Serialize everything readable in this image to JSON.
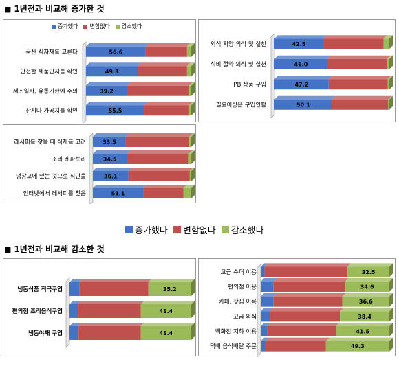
{
  "sections": {
    "increase_title": "1년전과 비교해 증가한 것",
    "decrease_title": "1년전과 비교해 감소한 것",
    "bullet": "■"
  },
  "legend": {
    "items": [
      {
        "label": "증가했다",
        "color": "#4472c4"
      },
      {
        "label": "변함없다",
        "color": "#c0504d"
      },
      {
        "label": "감소했다",
        "color": "#9bbb59"
      }
    ]
  },
  "chart_data": [
    {
      "type": "bar",
      "orientation": "horizontal",
      "stacked": true,
      "categories": [
        "국산 식자재를 고른다",
        "안전한 제품인지를 확인",
        "제조일자, 유통기한에 주의",
        "산지나 가공지를 확인"
      ],
      "series": [
        {
          "name": "증가했다",
          "values": [
            56.6,
            49.3,
            39.2,
            55.5
          ]
        },
        {
          "name": "변함없다",
          "values": [
            39.4,
            46.7,
            58.8,
            42.5
          ]
        },
        {
          "name": "감소했다",
          "values": [
            4.0,
            4.0,
            2.0,
            2.0
          ]
        }
      ],
      "labeled_series": "증가했다",
      "xlim": [
        0,
        100
      ],
      "legend": "top"
    },
    {
      "type": "bar",
      "orientation": "horizontal",
      "stacked": true,
      "categories": [
        "외식 지양 의식 및 실천",
        "식비 절약 의식 및 실천",
        "PB 상품 구입",
        "필요이상은 구입안함"
      ],
      "series": [
        {
          "name": "증가했다",
          "values": [
            42.5,
            46.0,
            47.2,
            50.1
          ]
        },
        {
          "name": "변함없다",
          "values": [
            52.5,
            52.0,
            51.3,
            48.9
          ]
        },
        {
          "name": "감소했다",
          "values": [
            5.0,
            2.0,
            1.5,
            1.0
          ]
        }
      ],
      "labeled_series": "증가했다",
      "xlim": [
        0,
        100
      ]
    },
    {
      "type": "bar",
      "orientation": "horizontal",
      "stacked": true,
      "categories": [
        "레시피를 찾을 때 식재를 고려",
        "조리 레파토리",
        "냉장고에 있는 것으로 식단을",
        "인터넷에서 레서피를 찾음"
      ],
      "series": [
        {
          "name": "증가했다",
          "values": [
            33.5,
            34.5,
            36.1,
            51.1
          ]
        },
        {
          "name": "변함없다",
          "values": [
            64.5,
            63.0,
            62.4,
            40.9
          ]
        },
        {
          "name": "감소했다",
          "values": [
            2.0,
            2.5,
            1.5,
            8.0
          ]
        }
      ],
      "labeled_series": "증가했다",
      "xlim": [
        0,
        100
      ],
      "legend": "bottom"
    },
    {
      "type": "bar",
      "orientation": "horizontal",
      "stacked": true,
      "categories": [
        "냉동식품 적극구입",
        "편의점 조리음식구입",
        "냉동야채 구입"
      ],
      "series": [
        {
          "name": "증가했다",
          "values": [
            8.0,
            7.0,
            7.5
          ]
        },
        {
          "name": "변함없다",
          "values": [
            56.8,
            51.6,
            51.1
          ]
        },
        {
          "name": "감소했다",
          "values": [
            35.2,
            41.4,
            41.4
          ]
        }
      ],
      "labeled_series": "감소했다",
      "xlim": [
        0,
        100
      ]
    },
    {
      "type": "bar",
      "orientation": "horizontal",
      "stacked": true,
      "categories": [
        "고급 슈퍼 이용",
        "편의점 이용",
        "카페, 찻집 이용",
        "고급 외식",
        "백화점 지하 이용",
        "택배 음식배달 주문"
      ],
      "series": [
        {
          "name": "증가했다",
          "values": [
            3.0,
            10.0,
            10.0,
            7.0,
            5.0,
            4.0
          ]
        },
        {
          "name": "변함없다",
          "values": [
            64.5,
            55.4,
            53.4,
            54.6,
            53.5,
            46.7
          ]
        },
        {
          "name": "감소했다",
          "values": [
            32.5,
            34.6,
            36.6,
            38.4,
            41.5,
            49.3
          ]
        }
      ],
      "labeled_series": "감소했다",
      "xlim": [
        0,
        100
      ]
    }
  ]
}
